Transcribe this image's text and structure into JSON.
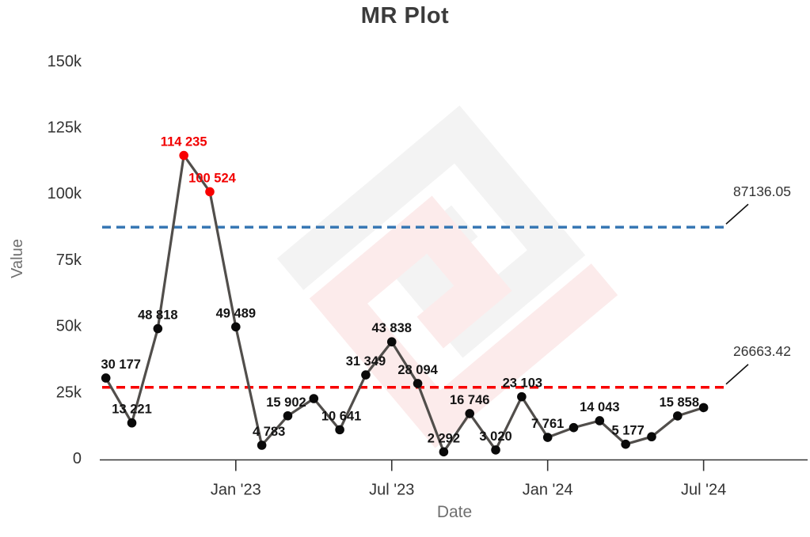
{
  "chart_data": {
    "type": "line",
    "title": "MR Plot",
    "xlabel": "Date",
    "ylabel": "Value",
    "ylim": [
      0,
      150000
    ],
    "grid": false,
    "legend": "none",
    "x_range_dates": [
      "Aug 2022",
      "Jul 2024"
    ],
    "y_ticks": [
      {
        "value": 0,
        "label": "0"
      },
      {
        "value": 25000,
        "label": "25k"
      },
      {
        "value": 50000,
        "label": "50k"
      },
      {
        "value": 75000,
        "label": "75k"
      },
      {
        "value": 100000,
        "label": "100k"
      },
      {
        "value": 125000,
        "label": "125k"
      },
      {
        "value": 150000,
        "label": "150k"
      }
    ],
    "x_ticks": [
      {
        "index": 5,
        "label": "Jan '23"
      },
      {
        "index": 11,
        "label": "Jul '23"
      },
      {
        "index": 17,
        "label": "Jan '24"
      },
      {
        "index": 23,
        "label": "Jul '24"
      }
    ],
    "points": [
      {
        "value": 30177,
        "label": "30 177",
        "highlight": false,
        "dx": 19
      },
      {
        "value": 13221,
        "label": "13 221",
        "highlight": false,
        "dx": 0
      },
      {
        "value": 48818,
        "label": "48 818",
        "highlight": false,
        "dx": 0
      },
      {
        "value": 114235,
        "label": "114 235",
        "highlight": true,
        "dx": 0
      },
      {
        "value": 100524,
        "label": "100 524",
        "highlight": true,
        "dx": 3
      },
      {
        "value": 49489,
        "label": "49 489",
        "highlight": false,
        "dx": 0
      },
      {
        "value": 4783,
        "label": "4 783",
        "highlight": false,
        "dx": 9
      },
      {
        "value": 15902,
        "label": "15 902",
        "highlight": false,
        "dx": -2
      },
      {
        "value": 22400,
        "label": null,
        "highlight": false,
        "dx": 0
      },
      {
        "value": 10641,
        "label": "10 641",
        "highlight": false,
        "dx": 2
      },
      {
        "value": 31349,
        "label": "31 349",
        "highlight": false,
        "dx": 0
      },
      {
        "value": 43838,
        "label": "43 838",
        "highlight": false,
        "dx": 0
      },
      {
        "value": 28094,
        "label": "28 094",
        "highlight": false,
        "dx": 0
      },
      {
        "value": 2292,
        "label": "2 292",
        "highlight": false,
        "dx": 0
      },
      {
        "value": 16746,
        "label": "16 746",
        "highlight": false,
        "dx": 0
      },
      {
        "value": 3020,
        "label": "3 020",
        "highlight": false,
        "dx": 0
      },
      {
        "value": 23103,
        "label": "23 103",
        "highlight": false,
        "dx": 1
      },
      {
        "value": 7761,
        "label": "7 761",
        "highlight": false,
        "dx": 0
      },
      {
        "value": 11450,
        "label": null,
        "highlight": false,
        "dx": 0
      },
      {
        "value": 14043,
        "label": "14 043",
        "highlight": false,
        "dx": 0
      },
      {
        "value": 5177,
        "label": "5 177",
        "highlight": false,
        "dx": 3
      },
      {
        "value": 8000,
        "label": null,
        "highlight": false,
        "dx": 0
      },
      {
        "value": 15858,
        "label": "15 858",
        "highlight": false,
        "dx": 2
      },
      {
        "value": 19000,
        "label": null,
        "highlight": false,
        "dx": 0
      }
    ],
    "reference_lines": [
      {
        "name": "upper-control-limit",
        "value": 87136.05,
        "label": "87136.05",
        "color": "#3878b4",
        "style": "dashed"
      },
      {
        "name": "mean-moving-range",
        "value": 26663.42,
        "label": "26663.42",
        "color": "#f80000",
        "style": "dashed"
      }
    ],
    "colors": {
      "series_line": "#514e4b",
      "marker": "#0a0a0a",
      "marker_highlight": "#f80000",
      "data_label": "#141414",
      "data_label_highlight": "#f20000",
      "axis": "#333333",
      "tick_label": "#333333",
      "axis_title": "#6f6f6f",
      "annotation_text": "#333333",
      "annotation_connector": "#111111"
    }
  },
  "watermark": {
    "name": "brand-logo-watermark",
    "colors": {
      "gray": "#f3f3f3",
      "pink": "#fcebeb"
    }
  }
}
